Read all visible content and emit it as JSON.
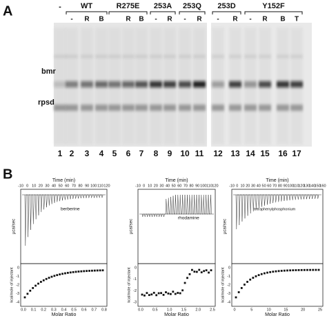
{
  "panel_a": {
    "label": "A",
    "dash_label": "-",
    "groups": [
      {
        "name": "WT",
        "lanes": [
          "-",
          "R",
          "B"
        ]
      },
      {
        "name": "R275E",
        "lanes": [
          "R",
          "B"
        ]
      },
      {
        "name": "253A",
        "lanes": [
          "-",
          "R"
        ]
      },
      {
        "name": "253Q",
        "lanes": [
          "-",
          "R"
        ]
      },
      {
        "name": "253D",
        "lanes": [
          "-",
          "R"
        ]
      },
      {
        "name": "Y152F",
        "lanes": [
          "-",
          "R",
          "B",
          "T"
        ]
      }
    ],
    "band_labels": [
      "bmr",
      "rpsd"
    ],
    "lane_numbers": [
      "1",
      "2",
      "3",
      "4",
      "5",
      "6",
      "7",
      "8",
      "9",
      "10",
      "11",
      "12",
      "13",
      "14",
      "15",
      "16",
      "17"
    ]
  },
  "panel_b": {
    "label": "B",
    "plots": [
      {
        "compound": "berberine",
        "time_label": "Time (min)",
        "time_ticks": [
          "-10",
          "0",
          "10",
          "20",
          "30",
          "40",
          "50",
          "60",
          "70",
          "80",
          "90",
          "100",
          "110",
          "120"
        ],
        "top_y_label": "µcal/sec",
        "bottom_y_label": "kcal/mole of injectant",
        "bottom_y_ticks": [
          "0",
          "-1",
          "-2",
          "-3",
          "-4"
        ],
        "x_label": "Molar Ratio",
        "x_ticks": [
          "0.0",
          "0.1",
          "0.2",
          "0.3",
          "0.4",
          "0.5",
          "0.6",
          "0.7",
          "0.8"
        ]
      },
      {
        "compound": "rhodamine",
        "time_label": "Time (min)",
        "time_ticks": [
          "-10",
          "0",
          "10",
          "20",
          "30",
          "40",
          "50",
          "60",
          "70",
          "80",
          "90",
          "100",
          "110",
          "120"
        ],
        "top_y_label": "µcal/sec",
        "bottom_y_label": "kcal/mole of injectant",
        "bottom_y_ticks": [
          "0",
          "-1",
          "-2",
          "-3"
        ],
        "x_label": "Molar Ratio",
        "x_ticks": [
          "0.0",
          "0.5",
          "1.0",
          "1.5",
          "2.0",
          "2.5"
        ]
      },
      {
        "compound": "tetraphenylphosphonium",
        "time_label": "Time (min)",
        "time_ticks": [
          "-10",
          "0",
          "10",
          "20",
          "30",
          "40",
          "50",
          "60",
          "70",
          "80",
          "90",
          "100",
          "110",
          "120",
          "130",
          "140",
          "150",
          "160"
        ],
        "top_y_label": "µcal/sec",
        "bottom_y_label": "kcal/mole of injectant",
        "bottom_y_ticks": [
          "0",
          "-1",
          "-2",
          "-3",
          "-4"
        ],
        "x_label": "Molar Ratio",
        "x_ticks": [
          "0",
          "5",
          "10",
          "15",
          "20",
          "25"
        ]
      }
    ]
  }
}
